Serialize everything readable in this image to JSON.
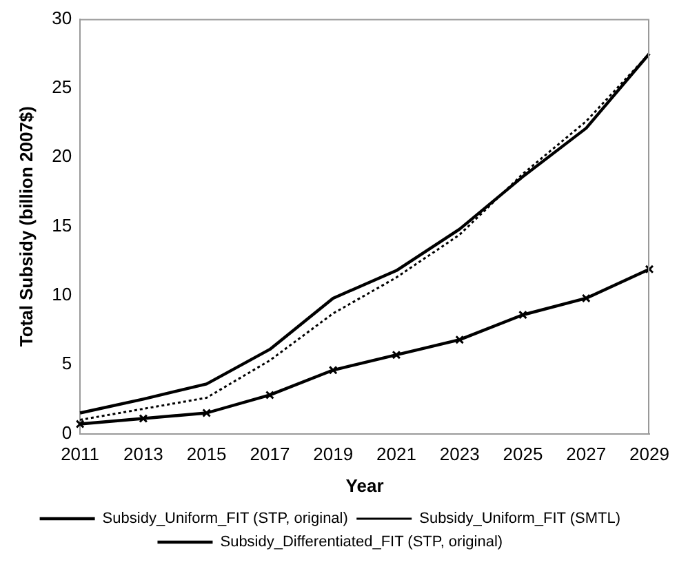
{
  "chart_data": {
    "type": "line",
    "xlabel": "Year",
    "ylabel": "Total Subsidy (billion 2007$)",
    "categories": [
      "2011",
      "2013",
      "2015",
      "2017",
      "2019",
      "2021",
      "2023",
      "2025",
      "2027",
      "2029"
    ],
    "ylim": [
      0,
      30
    ],
    "yticks": [
      0,
      5,
      10,
      15,
      20,
      25,
      30
    ],
    "grid": false,
    "legend": "bottom",
    "series": [
      {
        "name": "Subsidy_Uniform_FIT (STP, original)",
        "color": "#000000",
        "line_style": "solid",
        "marker": "none",
        "values": [
          1.5,
          2.5,
          3.6,
          6.1,
          9.8,
          11.8,
          14.8,
          18.6,
          22.1,
          27.5
        ]
      },
      {
        "name": "Subsidy_Uniform_FIT (SMTL)",
        "color": "#000000",
        "line_style": "dotted",
        "marker": "none",
        "values": [
          1.0,
          1.8,
          2.6,
          5.3,
          8.7,
          11.3,
          14.4,
          18.8,
          22.6,
          27.5
        ]
      },
      {
        "name": "Subsidy_Differentiated_FIT (STP, original)",
        "color": "#000000",
        "line_style": "solid",
        "marker": "cross",
        "values": [
          0.7,
          1.1,
          1.5,
          2.8,
          4.6,
          5.7,
          6.8,
          8.6,
          9.8,
          11.9
        ]
      }
    ]
  }
}
